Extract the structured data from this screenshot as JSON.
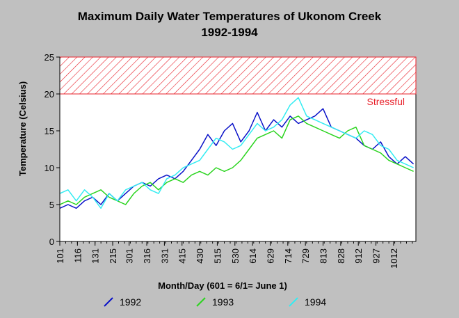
{
  "chart_data": {
    "type": "line",
    "title": [
      "Maximum Daily Water Temperatures of Ukonom Creek",
      "1992-1994"
    ],
    "xlabel": "Month/Day (601 = 6/1= June 1)",
    "ylabel": "Temperature (Celsius)",
    "ylim": [
      0,
      25
    ],
    "yticks": [
      0,
      5,
      10,
      15,
      20,
      25
    ],
    "xlim": [
      "01-01",
      "10-31"
    ],
    "xtick_labels": [
      "101",
      "116",
      "131",
      "215",
      "301",
      "316",
      "331",
      "415",
      "430",
      "515",
      "530",
      "614",
      "629",
      "714",
      "729",
      "813",
      "828",
      "912",
      "927",
      "1012"
    ],
    "xtick_dates": [
      "01-01",
      "01-16",
      "01-31",
      "02-15",
      "03-01",
      "03-16",
      "03-31",
      "04-15",
      "04-30",
      "05-15",
      "05-30",
      "06-14",
      "06-29",
      "07-14",
      "07-29",
      "08-13",
      "08-28",
      "09-12",
      "09-27",
      "10-12"
    ],
    "threshold": {
      "label": "Stressful",
      "from": 20,
      "to": 25,
      "color": "#e8202a"
    },
    "grid": false,
    "legend_position": "bottom",
    "series": [
      {
        "name": "1992",
        "color": "#0a12c8",
        "dates": [
          "01-01",
          "01-08",
          "01-15",
          "01-22",
          "01-29",
          "02-05",
          "02-12",
          "02-19",
          "02-26",
          "03-05",
          "03-12",
          "03-19",
          "03-26",
          "04-02",
          "04-09",
          "04-16",
          "04-23",
          "04-30",
          "05-07",
          "05-14",
          "05-21",
          "05-28",
          "06-04",
          "06-11",
          "06-18",
          "06-25",
          "07-02",
          "07-09",
          "07-16",
          "07-23",
          "07-30",
          "08-06",
          "08-13",
          "08-20",
          "08-27",
          "09-03",
          "09-10",
          "09-17",
          "09-24",
          "10-01",
          "10-08",
          "10-15",
          "10-22",
          "10-29"
        ],
        "values": [
          4.5,
          5.0,
          4.5,
          5.5,
          6.0,
          5.0,
          6.5,
          5.5,
          6.5,
          7.5,
          8.0,
          7.5,
          8.5,
          9.0,
          8.5,
          9.5,
          11.0,
          12.5,
          14.5,
          13.0,
          15.0,
          16.0,
          13.5,
          15.0,
          17.5,
          15.0,
          16.5,
          15.5,
          17.0,
          16.0,
          16.5,
          17.0,
          18.0,
          15.5,
          15.0,
          14.5,
          14.0,
          13.0,
          12.5,
          13.5,
          11.5,
          10.5,
          11.5,
          10.5
        ]
      },
      {
        "name": "1993",
        "color": "#2ad41e",
        "dates": [
          "01-01",
          "01-08",
          "01-15",
          "01-22",
          "01-29",
          "02-05",
          "02-12",
          "02-19",
          "02-26",
          "03-05",
          "03-12",
          "03-19",
          "03-26",
          "04-02",
          "04-09",
          "04-16",
          "04-23",
          "04-30",
          "05-07",
          "05-14",
          "05-21",
          "05-28",
          "06-04",
          "06-11",
          "06-18",
          "06-25",
          "07-02",
          "07-09",
          "07-16",
          "07-23",
          "07-30",
          "08-06",
          "08-13",
          "08-20",
          "08-27",
          "09-03",
          "09-10",
          "09-17",
          "09-24",
          "10-01",
          "10-08",
          "10-15",
          "10-22",
          "10-29"
        ],
        "values": [
          5.0,
          5.5,
          5.0,
          6.0,
          6.5,
          7.0,
          6.0,
          5.5,
          5.0,
          6.5,
          7.5,
          8.0,
          7.0,
          8.0,
          8.5,
          8.0,
          9.0,
          9.5,
          9.0,
          10.0,
          9.5,
          10.0,
          11.0,
          12.5,
          14.0,
          14.5,
          15.0,
          14.0,
          16.5,
          17.0,
          16.0,
          15.5,
          15.0,
          14.5,
          14.0,
          15.0,
          15.5,
          13.0,
          12.5,
          12.0,
          11.0,
          10.5,
          10.0,
          9.5
        ]
      },
      {
        "name": "1994",
        "color": "#33ecf2",
        "dates": [
          "01-01",
          "01-08",
          "01-15",
          "01-22",
          "01-29",
          "02-05",
          "02-12",
          "02-19",
          "02-26",
          "03-05",
          "03-12",
          "03-19",
          "03-26",
          "04-02",
          "04-09",
          "04-16",
          "04-23",
          "04-30",
          "05-07",
          "05-14",
          "05-21",
          "05-28",
          "06-04",
          "06-11",
          "06-18",
          "06-25",
          "07-02",
          "07-09",
          "07-16",
          "07-23",
          "07-30",
          "08-06",
          "08-13",
          "08-20",
          "08-27",
          "09-03",
          "09-10",
          "09-17",
          "09-24",
          "10-01",
          "10-08",
          "10-15",
          "10-22",
          "10-29"
        ],
        "values": [
          6.5,
          7.0,
          5.5,
          7.0,
          6.0,
          4.5,
          6.5,
          5.5,
          7.0,
          7.5,
          8.0,
          7.0,
          6.5,
          8.5,
          9.0,
          10.0,
          10.5,
          11.0,
          12.5,
          14.0,
          13.5,
          12.5,
          13.0,
          14.5,
          16.0,
          15.0,
          15.5,
          16.5,
          18.5,
          19.5,
          17.0,
          16.5,
          16.0,
          15.5,
          15.0,
          14.5,
          14.0,
          15.0,
          14.5,
          13.0,
          12.5,
          11.0,
          10.5,
          10.0
        ]
      }
    ]
  }
}
